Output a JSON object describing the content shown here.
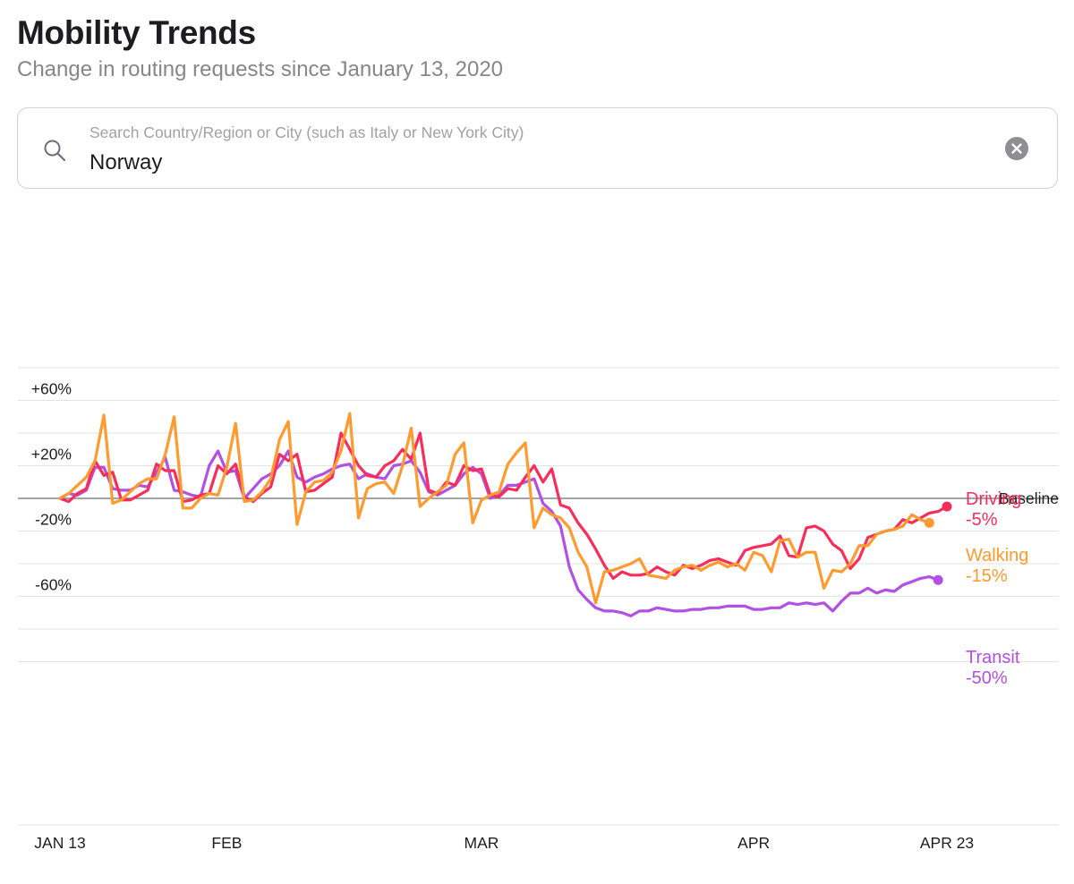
{
  "header": {
    "title": "Mobility Trends",
    "subtitle": "Change in routing requests since January 13, 2020"
  },
  "search": {
    "placeholder": "Search Country/Region or City (such as Italy or New York City)",
    "value": "Norway",
    "search_icon": "magnifying-glass-icon",
    "clear_icon": "clear-circle-x-icon"
  },
  "chart_data": {
    "type": "line",
    "x_start": "2020-01-13",
    "x_end": "2020-04-23",
    "x_tick_labels": [
      {
        "label": "JAN 13",
        "date": "2020-01-13"
      },
      {
        "label": "FEB",
        "date": "2020-02-01"
      },
      {
        "label": "MAR",
        "date": "2020-03-01"
      },
      {
        "label": "APR",
        "date": "2020-04-01"
      },
      {
        "label": "APR 23",
        "date": "2020-04-23"
      }
    ],
    "y_tick_labels": [
      {
        "label": "+60%",
        "value": 60
      },
      {
        "label": "+20%",
        "value": 20
      },
      {
        "label": "-20%",
        "value": -20
      },
      {
        "label": "-60%",
        "value": -60
      }
    ],
    "ylim": [
      -100,
      80
    ],
    "baseline_label": "Baseline",
    "gridlines": true,
    "series": [
      {
        "name": "Driving",
        "end_value_label": "-5%",
        "color": "#fa2c5a",
        "values": [
          0,
          -2,
          3,
          6,
          23,
          14,
          16,
          -1,
          -1,
          2,
          5,
          21,
          17,
          17,
          -2,
          -1,
          2,
          3,
          20,
          15,
          21,
          1,
          -2,
          3,
          7,
          27,
          23,
          27,
          4,
          5,
          9,
          13,
          40,
          30,
          20,
          14,
          13,
          20,
          23,
          30,
          24,
          40,
          5,
          3,
          10,
          8,
          20,
          17,
          18,
          2,
          1,
          6,
          5,
          13,
          20,
          10,
          18,
          -4,
          -6,
          -15,
          -22,
          -31,
          -41,
          -49,
          -45,
          -47,
          -47,
          -46,
          -42,
          -45,
          -47,
          -41,
          -43,
          -41,
          -38,
          -37,
          -39,
          -41,
          -32,
          -30,
          -29,
          -28,
          -23,
          -35,
          -36,
          -18,
          -17,
          -20,
          -28,
          -32,
          -43,
          -37,
          -24,
          -22,
          -20,
          -19,
          -13,
          -15,
          -12,
          -9,
          -8,
          -5
        ]
      },
      {
        "name": "Walking",
        "end_value_label": "-15%",
        "color": "#ff9a2e",
        "values": [
          0,
          3,
          8,
          13,
          23,
          51,
          -3,
          -1,
          4,
          9,
          12,
          12,
          27,
          50,
          -6,
          -6,
          0,
          3,
          2,
          19,
          46,
          -2,
          -1,
          4,
          12,
          36,
          47,
          -16,
          4,
          10,
          11,
          16,
          29,
          52,
          -12,
          6,
          9,
          10,
          3,
          20,
          43,
          -5,
          0,
          4,
          8,
          27,
          34,
          -15,
          -1,
          2,
          4,
          21,
          28,
          34,
          -18,
          -6,
          -10,
          -12,
          -18,
          -33,
          -42,
          -64,
          -45,
          -44,
          -42,
          -40,
          -37,
          -47,
          -48,
          -49,
          -44,
          -42,
          -41,
          -44,
          -41,
          -39,
          -42,
          -40,
          -44,
          -33,
          -35,
          -45,
          -26,
          -25,
          -36,
          -33,
          -33,
          -55,
          -44,
          -45,
          -40,
          -29,
          -29,
          -22,
          -20,
          -19,
          -17,
          -10,
          -13,
          -15
        ]
      },
      {
        "name": "Transit",
        "end_value_label": "-50%",
        "color": "#b150e2",
        "values": [
          0,
          3,
          2,
          5,
          19,
          19,
          6,
          5,
          5,
          8,
          7,
          16,
          25,
          5,
          4,
          2,
          1,
          20,
          29,
          16,
          17,
          0,
          6,
          12,
          15,
          20,
          29,
          13,
          10,
          13,
          15,
          18,
          20,
          21,
          12,
          15,
          13,
          12,
          20,
          21,
          23,
          16,
          4,
          2,
          5,
          8,
          15,
          19,
          15,
          0,
          2,
          8,
          8,
          10,
          12,
          -3,
          -8,
          -17,
          -42,
          -56,
          -62,
          -67,
          -69,
          -69,
          -70,
          -72,
          -69,
          -69,
          -67,
          -68,
          -69,
          -69,
          -68,
          -68,
          -67,
          -67,
          -66,
          -66,
          -66,
          -68,
          -68,
          -67,
          -67,
          -64,
          -65,
          -64,
          -65,
          -64,
          -69,
          -63,
          -58,
          -58,
          -55,
          -58,
          -56,
          -57,
          -53,
          -51,
          -49,
          -48,
          -50
        ]
      }
    ]
  }
}
